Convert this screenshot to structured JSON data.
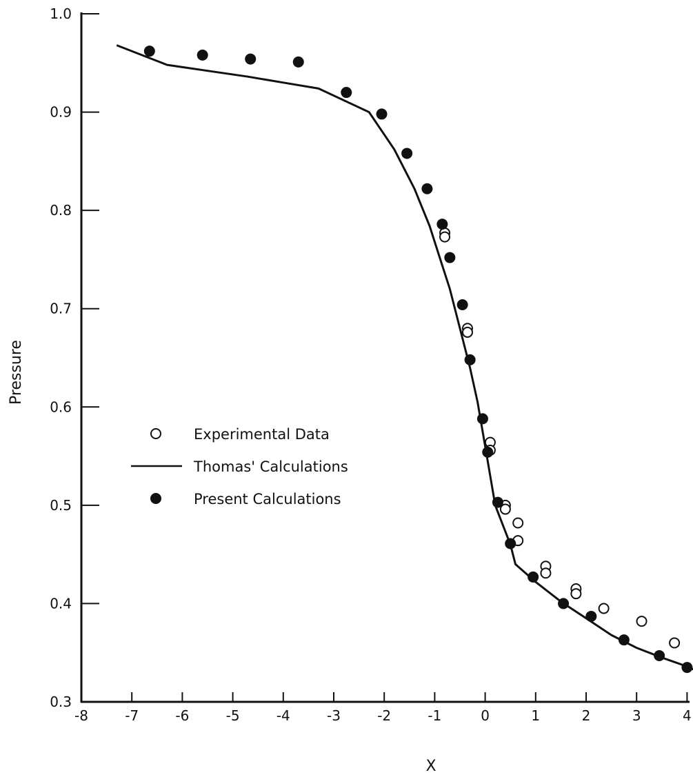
{
  "chart_data": {
    "type": "scatter",
    "title": "",
    "xlabel": "X",
    "ylabel": "Pressure",
    "xlim": [
      -8,
      4.2
    ],
    "ylim": [
      0.3,
      1.0
    ],
    "x_ticks": [
      -8,
      -7,
      -6,
      -5,
      -4,
      -3,
      -2,
      -1,
      0,
      1,
      2,
      3,
      4
    ],
    "x_tick_labels": [
      "-8",
      "-7",
      "-6",
      "-5",
      "-4",
      "-3",
      "-2",
      "-1",
      "0",
      "1",
      "2",
      "3",
      "4"
    ],
    "y_ticks": [
      0.3,
      0.4,
      0.5,
      0.6,
      0.7,
      0.8,
      0.9,
      1.0
    ],
    "y_tick_labels": [
      "0.3",
      "0.4",
      "0.5",
      "0.6",
      "0.7",
      "0.8",
      "0.9",
      "1.0"
    ],
    "grid": false,
    "legend_position": "left-middle",
    "colors": {
      "ink": "#111111",
      "background": "#ffffff"
    },
    "series": [
      {
        "name": "Experimental Data",
        "marker": "open-circle",
        "x": [
          -0.8,
          -0.8,
          -0.35,
          -0.35,
          0.1,
          0.1,
          0.4,
          0.4,
          0.65,
          0.65,
          1.2,
          1.2,
          1.8,
          1.8,
          2.35,
          3.1,
          3.75
        ],
        "y": [
          0.777,
          0.773,
          0.68,
          0.676,
          0.564,
          0.556,
          0.5,
          0.496,
          0.482,
          0.464,
          0.438,
          0.431,
          0.415,
          0.41,
          0.395,
          0.382,
          0.36
        ]
      },
      {
        "name": "Thomas' Calculations",
        "marker": "line",
        "x": [
          -7.3,
          -6.8,
          -6.3,
          -5.5,
          -4.7,
          -4.0,
          -3.3,
          -2.3,
          -1.8,
          -1.4,
          -1.1,
          -0.9,
          -0.7,
          -0.5,
          -0.3,
          -0.15,
          0.0,
          0.1,
          0.2,
          0.35,
          0.5,
          0.6,
          1.0,
          1.5,
          2.0,
          2.5,
          3.0,
          3.5,
          4.0,
          4.25
        ],
        "y": [
          0.968,
          0.958,
          0.948,
          0.942,
          0.936,
          0.93,
          0.924,
          0.9,
          0.862,
          0.822,
          0.784,
          0.752,
          0.72,
          0.68,
          0.64,
          0.605,
          0.56,
          0.53,
          0.5,
          0.48,
          0.46,
          0.44,
          0.422,
          0.402,
          0.385,
          0.368,
          0.355,
          0.345,
          0.336,
          0.33
        ]
      },
      {
        "name": "Present Calculations",
        "marker": "filled-circle",
        "x": [
          -6.65,
          -5.6,
          -4.65,
          -3.7,
          -2.75,
          -2.05,
          -1.55,
          -1.15,
          -0.85,
          -0.7,
          -0.45,
          -0.3,
          -0.05,
          0.05,
          0.25,
          0.5,
          0.95,
          1.55,
          2.1,
          2.75,
          3.45,
          4.0
        ],
        "y": [
          0.962,
          0.958,
          0.954,
          0.951,
          0.92,
          0.898,
          0.858,
          0.822,
          0.786,
          0.752,
          0.704,
          0.648,
          0.588,
          0.554,
          0.503,
          0.461,
          0.427,
          0.4,
          0.387,
          0.363,
          0.347,
          0.335
        ]
      }
    ]
  }
}
